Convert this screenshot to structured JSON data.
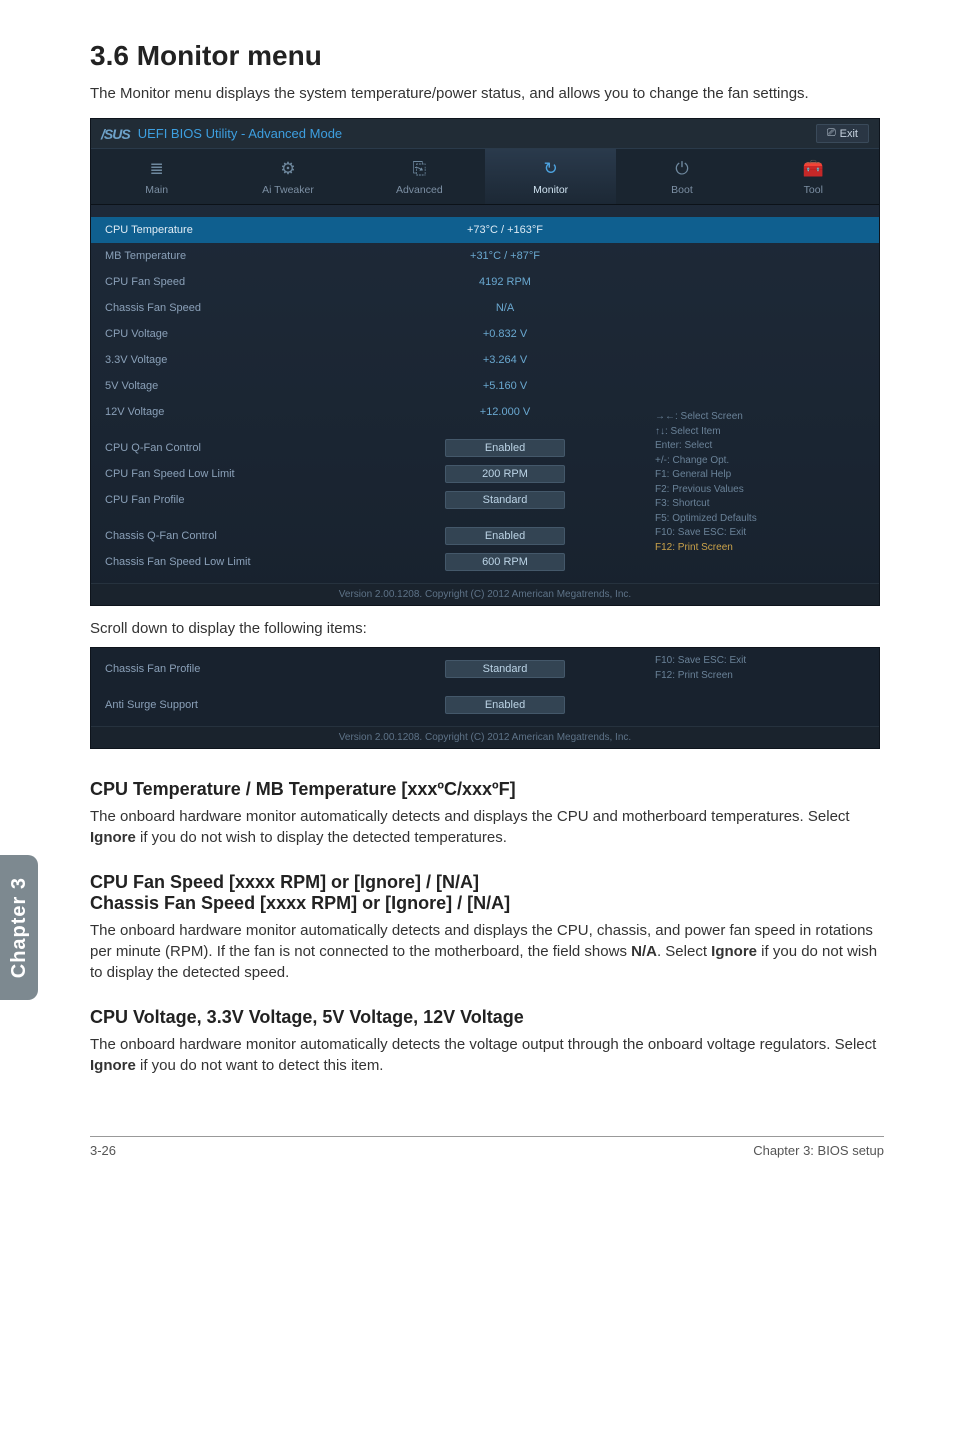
{
  "heading": "3.6    Monitor menu",
  "intro": "The Monitor menu displays the system temperature/power status, and allows you to change the fan settings.",
  "bios": {
    "brand": "/SUS",
    "title": "UEFI BIOS Utility - Advanced Mode",
    "exit": "Exit",
    "tabs": [
      {
        "icon": "≣",
        "label": "Main"
      },
      {
        "icon": "⚙",
        "label": "Ai Tweaker"
      },
      {
        "icon": "⎘",
        "label": "Advanced"
      },
      {
        "icon": "↻",
        "label": "Monitor"
      },
      {
        "icon": "⏻",
        "label": "Boot"
      },
      {
        "icon": "🧰",
        "label": "Tool"
      }
    ],
    "active_tab": 3,
    "rows": [
      {
        "label": "CPU Temperature",
        "value": "+73°C / +163°F",
        "type": "text",
        "highlight": true
      },
      {
        "label": "MB Temperature",
        "value": "+31°C / +87°F",
        "type": "text"
      },
      {
        "label": "CPU Fan Speed",
        "value": "4192 RPM",
        "type": "text"
      },
      {
        "label": "Chassis Fan Speed",
        "value": "N/A",
        "type": "text"
      },
      {
        "label": "CPU Voltage",
        "value": "+0.832 V",
        "type": "text"
      },
      {
        "label": "3.3V Voltage",
        "value": "+3.264 V",
        "type": "text"
      },
      {
        "label": "5V Voltage",
        "value": "+5.160 V",
        "type": "text"
      },
      {
        "label": "12V Voltage",
        "value": "+12.000 V",
        "type": "text"
      },
      {
        "spacer": true
      },
      {
        "label": "CPU Q-Fan Control",
        "value": "Enabled",
        "type": "btn"
      },
      {
        "label": "CPU Fan Speed Low Limit",
        "value": "200 RPM",
        "type": "btn"
      },
      {
        "label": " CPU Fan Profile",
        "value": "Standard",
        "type": "btn"
      },
      {
        "spacer": true
      },
      {
        "label": "Chassis Q-Fan Control",
        "value": "Enabled",
        "type": "btn"
      },
      {
        "label": "Chassis Fan Speed Low Limit",
        "value": "600 RPM",
        "type": "btn"
      }
    ],
    "help": [
      {
        "t": "→←: Select Screen"
      },
      {
        "t": "↑↓: Select Item"
      },
      {
        "t": "Enter: Select"
      },
      {
        "t": "+/-: Change Opt."
      },
      {
        "t": "F1: General Help"
      },
      {
        "t": "F2: Previous Values"
      },
      {
        "t": "F3: Shortcut"
      },
      {
        "t": "F5: Optimized Defaults"
      },
      {
        "t": "F10: Save  ESC: Exit"
      },
      {
        "t": "F12: Print Screen",
        "gold": true
      }
    ],
    "footer": "Version 2.00.1208.  Copyright (C) 2012 American Megatrends, Inc."
  },
  "scroll_caption": "Scroll down to display the following items:",
  "bios2": {
    "rows2": [
      {
        "label": " Chassis Fan Profile",
        "value": "Standard",
        "type": "btn"
      },
      {
        "spacer": true
      },
      {
        "label": "Anti Surge Support",
        "value": "Enabled",
        "type": "btn"
      }
    ],
    "help2": [
      {
        "t": "F10: Save  ESC: Exit"
      },
      {
        "t": "F12: Print Screen",
        "gold": true
      }
    ]
  },
  "chapter_tab": "Chapter 3",
  "sec1_head": "CPU Temperature / MB Temperature [xxxºC/xxxºF]",
  "sec1_body": "The onboard hardware monitor automatically detects and displays the CPU and motherboard temperatures. Select Ignore if you do not wish to display the detected temperatures.",
  "sec2_head1": "CPU Fan Speed [xxxx RPM] or [Ignore] / [N/A]",
  "sec2_head2": "Chassis Fan Speed [xxxx RPM] or [Ignore] / [N/A]",
  "sec2_body": "The onboard hardware monitor automatically detects and displays the CPU, chassis, and power fan speed in rotations per minute (RPM). If the fan is not connected to the motherboard, the field shows N/A. Select Ignore if you do not wish to display the detected speed.",
  "sec3_head": "CPU Voltage, 3.3V Voltage, 5V Voltage, 12V Voltage",
  "sec3_body": "The onboard hardware monitor automatically detects the voltage output through the onboard voltage regulators. Select Ignore if you do not want to detect this item.",
  "footer_left": "3-26",
  "footer_right": "Chapter 3: BIOS setup"
}
